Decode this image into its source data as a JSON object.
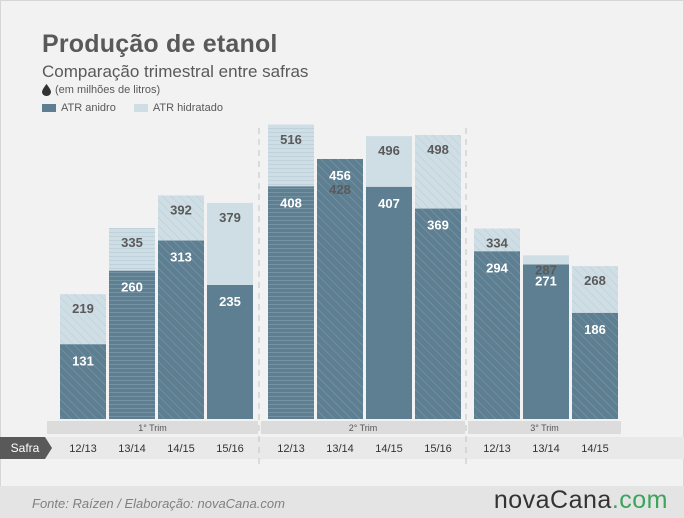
{
  "header": {
    "title": "Produção de etanol",
    "subtitle": "Comparação trimestral entre safras",
    "unit": "(em milhões de litros)"
  },
  "legend": {
    "anidro": "ATR anidro",
    "hidratado": "ATR hidratado"
  },
  "axis": {
    "row_label": "Safra"
  },
  "colors": {
    "anidro": "#5e7f91",
    "hidratado": "#cfdde4",
    "background": "#f2f2f2",
    "band": "#dcdcdc"
  },
  "chart_data": {
    "type": "bar",
    "stacking": "overlaid",
    "groups": [
      {
        "label": "1° Trim",
        "categories": [
          "12/13",
          "13/14",
          "14/15",
          "15/16"
        ],
        "anidro": [
          131,
          260,
          313,
          235
        ],
        "hidratado": [
          219,
          335,
          392,
          379
        ]
      },
      {
        "label": "2° Trim",
        "categories": [
          "12/13",
          "13/14",
          "14/15",
          "15/16"
        ],
        "anidro": [
          408,
          456,
          407,
          369
        ],
        "hidratado": [
          516,
          428,
          496,
          498
        ]
      },
      {
        "label": "3° Trim",
        "categories": [
          "12/13",
          "13/14",
          "14/15"
        ],
        "anidro": [
          294,
          271,
          186
        ],
        "hidratado": [
          334,
          287,
          268
        ]
      }
    ],
    "series": [
      {
        "name": "ATR anidro"
      },
      {
        "name": "ATR hidratado"
      }
    ]
  },
  "footer": {
    "source": "Fonte:  Raízen / Elaboração:  novaCana.com",
    "brand_main": "novaCana",
    "brand_tld": ".com"
  }
}
